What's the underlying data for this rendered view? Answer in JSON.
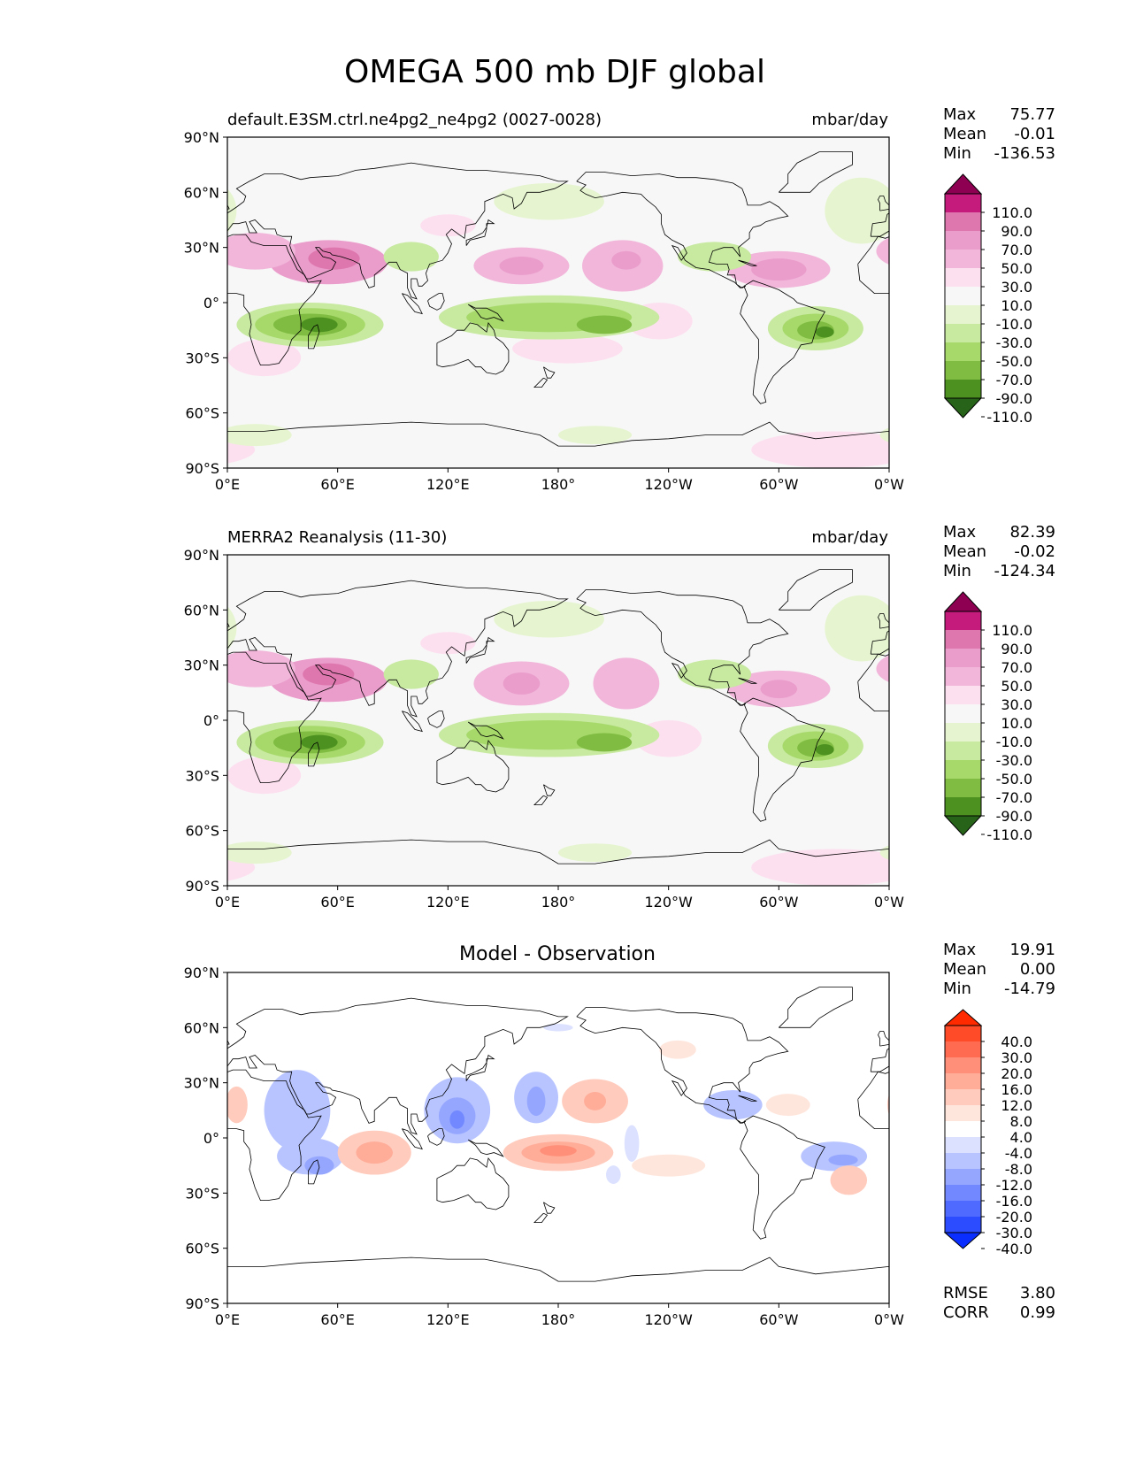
{
  "figure": {
    "title": "OMEGA 500 mb DJF global"
  },
  "axes": {
    "lat_ticks": [
      "90°N",
      "60°N",
      "30°N",
      "0°",
      "30°S",
      "60°S",
      "90°S"
    ],
    "lon_ticks": [
      "0°E",
      "60°E",
      "120°E",
      "180°",
      "120°W",
      "60°W",
      "0°W"
    ]
  },
  "panels": [
    {
      "title_left": "default.E3SM.ctrl.ne4pg2_ne4pg2 (0027-0028)",
      "title_center": "",
      "units": "mbar/day",
      "stats": [
        {
          "label": "Max",
          "value": "75.77"
        },
        {
          "label": "Mean",
          "value": "-0.01"
        },
        {
          "label": "Min",
          "value": "-136.53"
        }
      ],
      "colorbar": {
        "levels": [
          "110.0",
          "90.0",
          "70.0",
          "50.0",
          "30.0",
          "10.0",
          "-10.0",
          "-30.0",
          "-50.0",
          "-70.0",
          "-90.0",
          "-110.0"
        ],
        "colors": [
          "#8e0152",
          "#c51b7d",
          "#de77ae",
          "#ea9ccb",
          "#f1b6da",
          "#fde0ef",
          "#f7f7f7",
          "#e6f5d0",
          "#c7e9a0",
          "#a6d96a",
          "#7fbc41",
          "#4d9221",
          "#276419"
        ]
      }
    },
    {
      "title_left": "MERRA2 Reanalysis (11-30)",
      "title_center": "",
      "units": "mbar/day",
      "stats": [
        {
          "label": "Max",
          "value": "82.39"
        },
        {
          "label": "Mean",
          "value": "-0.02"
        },
        {
          "label": "Min",
          "value": "-124.34"
        }
      ],
      "colorbar": {
        "levels": [
          "110.0",
          "90.0",
          "70.0",
          "50.0",
          "30.0",
          "10.0",
          "-10.0",
          "-30.0",
          "-50.0",
          "-70.0",
          "-90.0",
          "-110.0"
        ],
        "colors": [
          "#8e0152",
          "#c51b7d",
          "#de77ae",
          "#ea9ccb",
          "#f1b6da",
          "#fde0ef",
          "#f7f7f7",
          "#e6f5d0",
          "#c7e9a0",
          "#a6d96a",
          "#7fbc41",
          "#4d9221",
          "#276419"
        ]
      }
    },
    {
      "title_left": "",
      "title_center": "Model - Observation",
      "units": "",
      "stats": [
        {
          "label": "Max",
          "value": "19.91"
        },
        {
          "label": "Mean",
          "value": "0.00"
        },
        {
          "label": "Min",
          "value": "-14.79"
        }
      ],
      "colorbar": {
        "levels": [
          "40.0",
          "30.0",
          "20.0",
          "16.0",
          "12.0",
          "8.0",
          "4.0",
          "-4.0",
          "-8.0",
          "-12.0",
          "-16.0",
          "-20.0",
          "-30.0",
          "-40.0"
        ],
        "colors": [
          "#ff2a00",
          "#ff4b28",
          "#ff6b50",
          "#ff8f78",
          "#ffac98",
          "#ffcbbd",
          "#ffe6dd",
          "#ffffff",
          "#dbe1ff",
          "#b8c4ff",
          "#95a6ff",
          "#7288ff",
          "#4f6aff",
          "#2c4cff",
          "#0a2eff"
        ]
      },
      "bottom_stats": [
        {
          "label": "RMSE",
          "value": "3.80"
        },
        {
          "label": "CORR",
          "value": "0.99"
        }
      ]
    }
  ],
  "map_fields": [
    [
      {
        "lon": 55,
        "lat": 22,
        "rx": 32,
        "ry": 12,
        "level": 3
      },
      {
        "lon": 58,
        "lat": 24,
        "rx": 14,
        "ry": 6,
        "level": 2
      },
      {
        "lon": 15,
        "lat": 28,
        "rx": 22,
        "ry": 10,
        "level": 4
      },
      {
        "lon": 160,
        "lat": 20,
        "rx": 26,
        "ry": 10,
        "level": 4
      },
      {
        "lon": 160,
        "lat": 20,
        "rx": 12,
        "ry": 5,
        "level": 3
      },
      {
        "lon": 215,
        "lat": 20,
        "rx": 22,
        "ry": 14,
        "level": 4
      },
      {
        "lon": 217,
        "lat": 23,
        "rx": 8,
        "ry": 5,
        "level": 3
      },
      {
        "lon": 300,
        "lat": 18,
        "rx": 28,
        "ry": 10,
        "level": 4
      },
      {
        "lon": 300,
        "lat": 18,
        "rx": 15,
        "ry": 6,
        "level": 3
      },
      {
        "lon": 120,
        "lat": 42,
        "rx": 15,
        "ry": 6,
        "level": 5
      },
      {
        "lon": 235,
        "lat": -10,
        "rx": 18,
        "ry": 10,
        "level": 5
      },
      {
        "lon": 20,
        "lat": -30,
        "rx": 20,
        "ry": 10,
        "level": 5
      },
      {
        "lon": 185,
        "lat": -25,
        "rx": 30,
        "ry": 8,
        "level": 5
      },
      {
        "lon": 330,
        "lat": -80,
        "rx": 45,
        "ry": 10,
        "level": 5
      },
      {
        "lon": 45,
        "lat": -12,
        "rx": 40,
        "ry": 12,
        "level": 8
      },
      {
        "lon": 45,
        "lat": -12,
        "rx": 30,
        "ry": 9,
        "level": 9
      },
      {
        "lon": 45,
        "lat": -12,
        "rx": 20,
        "ry": 6,
        "level": 10
      },
      {
        "lon": 50,
        "lat": -12,
        "rx": 10,
        "ry": 4,
        "level": 11
      },
      {
        "lon": 175,
        "lat": -8,
        "rx": 60,
        "ry": 12,
        "level": 8
      },
      {
        "lon": 175,
        "lat": -8,
        "rx": 45,
        "ry": 8,
        "level": 9
      },
      {
        "lon": 205,
        "lat": -12,
        "rx": 15,
        "ry": 5,
        "level": 10
      },
      {
        "lon": 320,
        "lat": -14,
        "rx": 26,
        "ry": 12,
        "level": 8
      },
      {
        "lon": 320,
        "lat": -14,
        "rx": 18,
        "ry": 8,
        "level": 9
      },
      {
        "lon": 320,
        "lat": -15,
        "rx": 10,
        "ry": 5,
        "level": 10
      },
      {
        "lon": 325,
        "lat": -16,
        "rx": 5,
        "ry": 3,
        "level": 11
      },
      {
        "lon": 175,
        "lat": 55,
        "rx": 30,
        "ry": 10,
        "level": 7
      },
      {
        "lon": 100,
        "lat": 25,
        "rx": 15,
        "ry": 8,
        "level": 8
      },
      {
        "lon": 265,
        "lat": 25,
        "rx": 20,
        "ry": 8,
        "level": 8
      },
      {
        "lon": 345,
        "lat": 50,
        "rx": 20,
        "ry": 18,
        "level": 7
      },
      {
        "lon": 15,
        "lat": -72,
        "rx": 20,
        "ry": 6,
        "level": 7
      },
      {
        "lon": 200,
        "lat": -72,
        "rx": 20,
        "ry": 5,
        "level": 7
      }
    ],
    [
      {
        "lon": 55,
        "lat": 22,
        "rx": 32,
        "ry": 12,
        "level": 3
      },
      {
        "lon": 55,
        "lat": 25,
        "rx": 14,
        "ry": 6,
        "level": 2
      },
      {
        "lon": 15,
        "lat": 28,
        "rx": 22,
        "ry": 10,
        "level": 4
      },
      {
        "lon": 160,
        "lat": 20,
        "rx": 26,
        "ry": 12,
        "level": 4
      },
      {
        "lon": 160,
        "lat": 20,
        "rx": 10,
        "ry": 6,
        "level": 3
      },
      {
        "lon": 217,
        "lat": 20,
        "rx": 18,
        "ry": 14,
        "level": 4
      },
      {
        "lon": 300,
        "lat": 17,
        "rx": 28,
        "ry": 10,
        "level": 4
      },
      {
        "lon": 300,
        "lat": 17,
        "rx": 10,
        "ry": 5,
        "level": 3
      },
      {
        "lon": 120,
        "lat": 42,
        "rx": 15,
        "ry": 6,
        "level": 5
      },
      {
        "lon": 240,
        "lat": -10,
        "rx": 18,
        "ry": 10,
        "level": 5
      },
      {
        "lon": 20,
        "lat": -30,
        "rx": 20,
        "ry": 10,
        "level": 5
      },
      {
        "lon": 330,
        "lat": -80,
        "rx": 45,
        "ry": 10,
        "level": 5
      },
      {
        "lon": 45,
        "lat": -12,
        "rx": 40,
        "ry": 12,
        "level": 8
      },
      {
        "lon": 45,
        "lat": -12,
        "rx": 30,
        "ry": 9,
        "level": 9
      },
      {
        "lon": 45,
        "lat": -12,
        "rx": 20,
        "ry": 6,
        "level": 10
      },
      {
        "lon": 50,
        "lat": -12,
        "rx": 10,
        "ry": 4,
        "level": 11
      },
      {
        "lon": 175,
        "lat": -8,
        "rx": 60,
        "ry": 12,
        "level": 8
      },
      {
        "lon": 175,
        "lat": -8,
        "rx": 45,
        "ry": 8,
        "level": 9
      },
      {
        "lon": 205,
        "lat": -12,
        "rx": 15,
        "ry": 5,
        "level": 10
      },
      {
        "lon": 320,
        "lat": -14,
        "rx": 26,
        "ry": 12,
        "level": 8
      },
      {
        "lon": 320,
        "lat": -14,
        "rx": 18,
        "ry": 8,
        "level": 9
      },
      {
        "lon": 320,
        "lat": -15,
        "rx": 10,
        "ry": 5,
        "level": 10
      },
      {
        "lon": 325,
        "lat": -16,
        "rx": 5,
        "ry": 3,
        "level": 11
      },
      {
        "lon": 175,
        "lat": 55,
        "rx": 30,
        "ry": 10,
        "level": 7
      },
      {
        "lon": 100,
        "lat": 25,
        "rx": 15,
        "ry": 8,
        "level": 8
      },
      {
        "lon": 265,
        "lat": 25,
        "rx": 20,
        "ry": 8,
        "level": 8
      },
      {
        "lon": 345,
        "lat": 50,
        "rx": 20,
        "ry": 18,
        "level": 7
      },
      {
        "lon": 15,
        "lat": -72,
        "rx": 20,
        "ry": 6,
        "level": 7
      },
      {
        "lon": 200,
        "lat": -72,
        "rx": 20,
        "ry": 5,
        "level": 7
      }
    ],
    [
      {
        "lon": 38,
        "lat": 15,
        "rx": 18,
        "ry": 22,
        "level": 9
      },
      {
        "lon": 45,
        "lat": -10,
        "rx": 18,
        "ry": 10,
        "level": 9
      },
      {
        "lon": 50,
        "lat": -15,
        "rx": 8,
        "ry": 5,
        "level": 10
      },
      {
        "lon": 125,
        "lat": 15,
        "rx": 18,
        "ry": 18,
        "level": 9
      },
      {
        "lon": 125,
        "lat": 12,
        "rx": 10,
        "ry": 10,
        "level": 10
      },
      {
        "lon": 125,
        "lat": 10,
        "rx": 4,
        "ry": 5,
        "level": 11
      },
      {
        "lon": 168,
        "lat": 22,
        "rx": 12,
        "ry": 14,
        "level": 9
      },
      {
        "lon": 168,
        "lat": 20,
        "rx": 5,
        "ry": 8,
        "level": 10
      },
      {
        "lon": 275,
        "lat": 18,
        "rx": 16,
        "ry": 8,
        "level": 9
      },
      {
        "lon": 220,
        "lat": -3,
        "rx": 4,
        "ry": 10,
        "level": 8
      },
      {
        "lon": 330,
        "lat": -10,
        "rx": 18,
        "ry": 8,
        "level": 9
      },
      {
        "lon": 335,
        "lat": -12,
        "rx": 8,
        "ry": 3,
        "level": 10
      },
      {
        "lon": 210,
        "lat": -20,
        "rx": 4,
        "ry": 5,
        "level": 8
      },
      {
        "lon": 180,
        "lat": 60,
        "rx": 8,
        "ry": 2,
        "level": 8
      },
      {
        "lon": 5,
        "lat": 18,
        "rx": 6,
        "ry": 10,
        "level": 5
      },
      {
        "lon": 80,
        "lat": -8,
        "rx": 20,
        "ry": 12,
        "level": 5
      },
      {
        "lon": 80,
        "lat": -8,
        "rx": 10,
        "ry": 6,
        "level": 4
      },
      {
        "lon": 180,
        "lat": -8,
        "rx": 30,
        "ry": 10,
        "level": 5
      },
      {
        "lon": 180,
        "lat": -8,
        "rx": 20,
        "ry": 6,
        "level": 4
      },
      {
        "lon": 180,
        "lat": -7,
        "rx": 10,
        "ry": 3,
        "level": 3
      },
      {
        "lon": 200,
        "lat": 20,
        "rx": 18,
        "ry": 12,
        "level": 5
      },
      {
        "lon": 200,
        "lat": 20,
        "rx": 6,
        "ry": 5,
        "level": 4
      },
      {
        "lon": 240,
        "lat": -15,
        "rx": 20,
        "ry": 6,
        "level": 6
      },
      {
        "lon": 305,
        "lat": 18,
        "rx": 12,
        "ry": 6,
        "level": 6
      },
      {
        "lon": 338,
        "lat": -23,
        "rx": 10,
        "ry": 8,
        "level": 5
      },
      {
        "lon": 245,
        "lat": 48,
        "rx": 10,
        "ry": 5,
        "level": 6
      }
    ]
  ]
}
